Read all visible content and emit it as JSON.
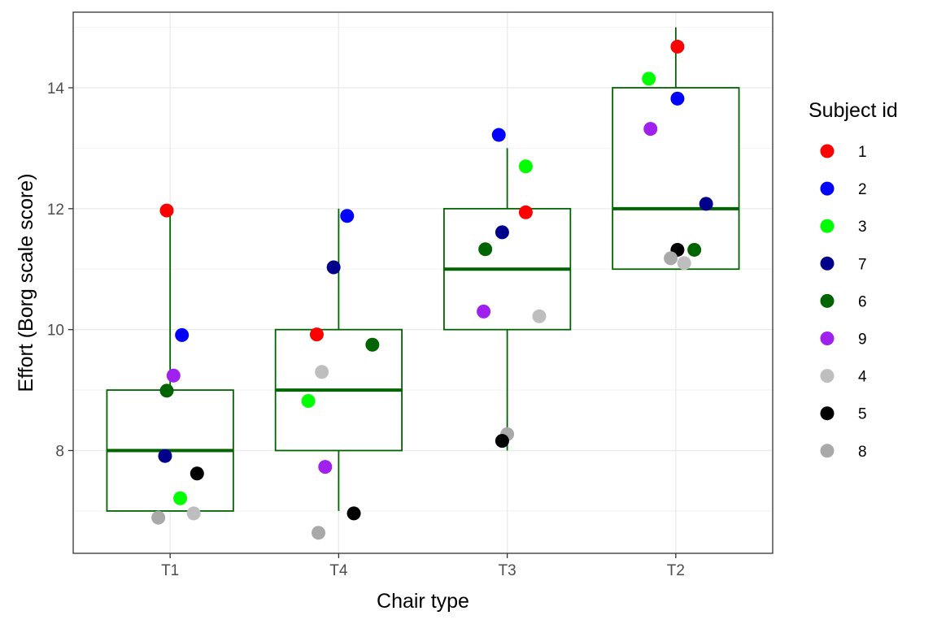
{
  "chart_data": {
    "type": "box-with-jitter",
    "title": "",
    "xlabel": "Chair type",
    "ylabel": "Effort (Borg scale score)",
    "categories": [
      "T1",
      "T4",
      "T3",
      "T2"
    ],
    "ylim": [
      6.3,
      15.25
    ],
    "yticks": [
      8,
      10,
      12,
      14
    ],
    "grid": true,
    "box_color": "#006400",
    "boxes": [
      {
        "category": "T1",
        "whisker_low": 7,
        "q1": 7,
        "median": 8,
        "q3": 9,
        "whisker_high": 12
      },
      {
        "category": "T4",
        "whisker_low": 7,
        "q1": 8,
        "median": 9,
        "q3": 10,
        "whisker_high": 12
      },
      {
        "category": "T3",
        "whisker_low": 8,
        "q1": 10,
        "median": 11,
        "q3": 12,
        "whisker_high": 13
      },
      {
        "category": "T2",
        "whisker_low": 11,
        "q1": 11,
        "median": 12,
        "q3": 14,
        "whisker_high": 15
      }
    ],
    "legend": {
      "title": "Subject id",
      "placement": "right",
      "entries": [
        {
          "label": "1",
          "color": "#ff0000"
        },
        {
          "label": "2",
          "color": "#0000ff"
        },
        {
          "label": "3",
          "color": "#00ff00"
        },
        {
          "label": "7",
          "color": "#00008b"
        },
        {
          "label": "6",
          "color": "#006400"
        },
        {
          "label": "9",
          "color": "#a020f0"
        },
        {
          "label": "4",
          "color": "#bebebe"
        },
        {
          "label": "5",
          "color": "#000000"
        },
        {
          "label": "8",
          "color": "#a9a9a9"
        }
      ]
    },
    "points": [
      {
        "category": "T1",
        "subject": "1",
        "jitter": -0.02,
        "y": 11.97
      },
      {
        "category": "T1",
        "subject": "2",
        "jitter": 0.07,
        "y": 9.91
      },
      {
        "category": "T1",
        "subject": "9",
        "jitter": 0.02,
        "y": 9.24
      },
      {
        "category": "T1",
        "subject": "6",
        "jitter": -0.02,
        "y": 8.99
      },
      {
        "category": "T1",
        "subject": "7",
        "jitter": -0.03,
        "y": 7.91
      },
      {
        "category": "T1",
        "subject": "5",
        "jitter": 0.16,
        "y": 7.62
      },
      {
        "category": "T1",
        "subject": "3",
        "jitter": 0.06,
        "y": 7.21
      },
      {
        "category": "T1",
        "subject": "4",
        "jitter": 0.14,
        "y": 6.96
      },
      {
        "category": "T1",
        "subject": "8",
        "jitter": -0.07,
        "y": 6.89
      },
      {
        "category": "T4",
        "subject": "2",
        "jitter": 0.05,
        "y": 11.88
      },
      {
        "category": "T4",
        "subject": "7",
        "jitter": -0.03,
        "y": 11.03
      },
      {
        "category": "T4",
        "subject": "1",
        "jitter": -0.13,
        "y": 9.92
      },
      {
        "category": "T4",
        "subject": "6",
        "jitter": 0.2,
        "y": 9.75
      },
      {
        "category": "T4",
        "subject": "4",
        "jitter": -0.1,
        "y": 9.3
      },
      {
        "category": "T4",
        "subject": "3",
        "jitter": -0.18,
        "y": 8.82
      },
      {
        "category": "T4",
        "subject": "9",
        "jitter": -0.08,
        "y": 7.73
      },
      {
        "category": "T4",
        "subject": "5",
        "jitter": 0.09,
        "y": 6.96
      },
      {
        "category": "T4",
        "subject": "8",
        "jitter": -0.12,
        "y": 6.64
      },
      {
        "category": "T3",
        "subject": "2",
        "jitter": -0.05,
        "y": 13.22
      },
      {
        "category": "T3",
        "subject": "3",
        "jitter": 0.11,
        "y": 12.7
      },
      {
        "category": "T3",
        "subject": "1",
        "jitter": 0.11,
        "y": 11.94
      },
      {
        "category": "T3",
        "subject": "7",
        "jitter": -0.03,
        "y": 11.61
      },
      {
        "category": "T3",
        "subject": "6",
        "jitter": -0.13,
        "y": 11.33
      },
      {
        "category": "T3",
        "subject": "9",
        "jitter": -0.14,
        "y": 10.3
      },
      {
        "category": "T3",
        "subject": "4",
        "jitter": 0.19,
        "y": 10.22
      },
      {
        "category": "T3",
        "subject": "8",
        "jitter": 0.0,
        "y": 8.27
      },
      {
        "category": "T3",
        "subject": "5",
        "jitter": -0.03,
        "y": 8.16
      },
      {
        "category": "T2",
        "subject": "1",
        "jitter": 0.01,
        "y": 14.68
      },
      {
        "category": "T2",
        "subject": "3",
        "jitter": -0.16,
        "y": 14.15
      },
      {
        "category": "T2",
        "subject": "2",
        "jitter": 0.01,
        "y": 13.82
      },
      {
        "category": "T2",
        "subject": "9",
        "jitter": -0.15,
        "y": 13.32
      },
      {
        "category": "T2",
        "subject": "7",
        "jitter": 0.18,
        "y": 12.08
      },
      {
        "category": "T2",
        "subject": "5",
        "jitter": 0.01,
        "y": 11.32
      },
      {
        "category": "T2",
        "subject": "6",
        "jitter": 0.11,
        "y": 11.32
      },
      {
        "category": "T2",
        "subject": "8",
        "jitter": -0.03,
        "y": 11.18
      },
      {
        "category": "T2",
        "subject": "4",
        "jitter": 0.05,
        "y": 11.1
      }
    ]
  }
}
